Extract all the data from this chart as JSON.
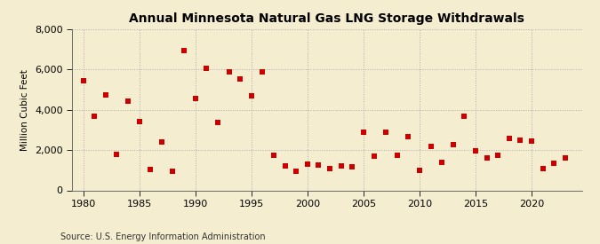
{
  "title": "Annual Minnesota Natural Gas LNG Storage Withdrawals",
  "ylabel": "Million Cubic Feet",
  "source": "Source: U.S. Energy Information Administration",
  "background_color": "#f5edcf",
  "marker_color": "#cc0000",
  "xlim": [
    1979,
    2024.5
  ],
  "ylim": [
    0,
    8000
  ],
  "yticks": [
    0,
    2000,
    4000,
    6000,
    8000
  ],
  "xticks": [
    1980,
    1985,
    1990,
    1995,
    2000,
    2005,
    2010,
    2015,
    2020
  ],
  "data": [
    [
      1980,
      5450
    ],
    [
      1981,
      3700
    ],
    [
      1982,
      4750
    ],
    [
      1983,
      1800
    ],
    [
      1984,
      4450
    ],
    [
      1985,
      3400
    ],
    [
      1986,
      1050
    ],
    [
      1987,
      2400
    ],
    [
      1988,
      950
    ],
    [
      1989,
      6950
    ],
    [
      1990,
      4550
    ],
    [
      1991,
      6050
    ],
    [
      1992,
      3350
    ],
    [
      1993,
      5900
    ],
    [
      1994,
      5550
    ],
    [
      1995,
      4700
    ],
    [
      1996,
      5900
    ],
    [
      1997,
      1750
    ],
    [
      1998,
      1200
    ],
    [
      1999,
      950
    ],
    [
      2000,
      1300
    ],
    [
      2001,
      1250
    ],
    [
      2002,
      1100
    ],
    [
      2003,
      1200
    ],
    [
      2004,
      1150
    ],
    [
      2005,
      2900
    ],
    [
      2006,
      1700
    ],
    [
      2007,
      2900
    ],
    [
      2008,
      1750
    ],
    [
      2009,
      2650
    ],
    [
      2010,
      1000
    ],
    [
      2011,
      2200
    ],
    [
      2012,
      1400
    ],
    [
      2013,
      2250
    ],
    [
      2014,
      3700
    ],
    [
      2015,
      1950
    ],
    [
      2016,
      1600
    ],
    [
      2017,
      1750
    ],
    [
      2018,
      2600
    ],
    [
      2019,
      2500
    ],
    [
      2020,
      2450
    ],
    [
      2021,
      1100
    ],
    [
      2022,
      1350
    ],
    [
      2023,
      1600
    ]
  ]
}
